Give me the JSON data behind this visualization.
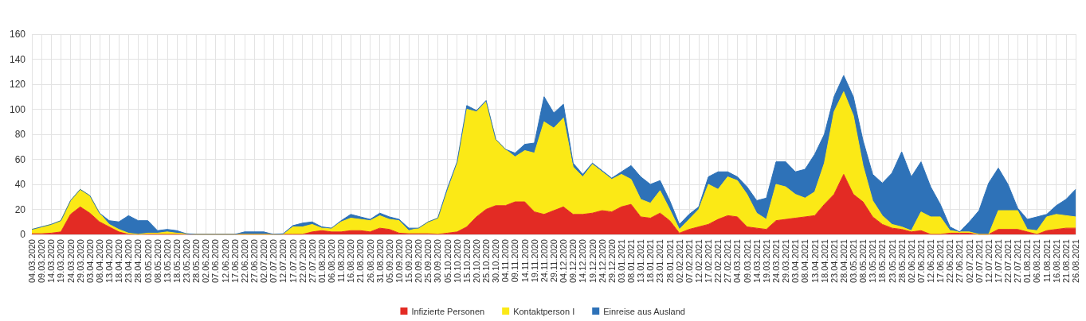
{
  "chart_data": {
    "type": "area",
    "stacked": true,
    "grid": true,
    "legend": "bottom",
    "categories": [
      "04.03.2020",
      "09.03.2020",
      "14.03.2020",
      "19.03.2020",
      "24.03.2020",
      "29.03.2020",
      "03.04.2020",
      "08.04.2020",
      "13.04.2020",
      "18.04.2020",
      "23.04.2020",
      "28.04.2020",
      "03.05.2020",
      "08.05.2020",
      "13.05.2020",
      "18.05.2020",
      "23.05.2020",
      "28.05.2020",
      "02.06.2020",
      "07.06.2020",
      "12.06.2020",
      "17.06.2020",
      "22.06.2020",
      "27.06.2020",
      "02.07.2020",
      "07.07.2020",
      "12.07.2020",
      "17.07.2020",
      "22.07.2020",
      "27.07.2020",
      "01.08.2020",
      "06.08.2020",
      "11.08.2020",
      "16.08.2020",
      "21.08.2020",
      "26.08.2020",
      "31.08.2020",
      "05.09.2020",
      "10.09.2020",
      "15.09.2020",
      "20.09.2020",
      "25.09.2020",
      "30.09.2020",
      "05.10.2020",
      "10.10.2020",
      "15.10.2020",
      "20.10.2020",
      "25.10.2020",
      "30.10.2020",
      "04.11.2020",
      "09.11.2020",
      "14.11.2020",
      "19.11.2020",
      "24.11.2020",
      "29.11.2020",
      "04.12.2020",
      "09.12.2020",
      "14.12.2020",
      "19.12.2020",
      "24.12.2020",
      "29.12.2020",
      "03.01.2021",
      "08.01.2021",
      "13.01.2021",
      "18.01.2021",
      "23.01.2021",
      "28.01.2021",
      "02.02.2021",
      "07.02.2021",
      "12.02.2021",
      "17.02.2021",
      "22.02.2021",
      "27.02.2021",
      "04.03.2021",
      "09.03.2021",
      "14.03.2021",
      "19.03.2021",
      "24.03.2021",
      "29.03.2021",
      "03.04.2021",
      "08.04.2021",
      "13.04.2021",
      "18.04.2021",
      "23.04.2021",
      "28.04.2021",
      "03.05.2021",
      "08.05.2021",
      "13.05.2021",
      "18.05.2021",
      "23.05.2021",
      "28.05.2021",
      "02.06.2021",
      "07.06.2021",
      "12.06.2021",
      "17.06.2021",
      "22.06.2021",
      "27.06.2021",
      "02.07.2021",
      "07.07.2021",
      "12.07.2021",
      "17.07.2021",
      "22.07.2021",
      "27.07.2021",
      "01.08.2021",
      "06.08.2021",
      "11.08.2021",
      "16.08.2021",
      "21.08.2021",
      "26.08.2021"
    ],
    "ylim": [
      0,
      160
    ],
    "yticks": [
      0,
      20,
      40,
      60,
      80,
      100,
      120,
      140,
      160
    ],
    "series": [
      {
        "name": "Infizierte Personen",
        "color": "#e32b24",
        "values": [
          0.5,
          0.5,
          1,
          2,
          16,
          22,
          17,
          10,
          6,
          2,
          0,
          0,
          0,
          0,
          0,
          0,
          0,
          0,
          0,
          0,
          0,
          0,
          0,
          0,
          0,
          0,
          0,
          0,
          0,
          2,
          3,
          2,
          2,
          3,
          3,
          2,
          5,
          4,
          1,
          0.5,
          0.5,
          0.5,
          0,
          1,
          2,
          6,
          14,
          20,
          23,
          23,
          26,
          26,
          18,
          16,
          19,
          22,
          16,
          16,
          17,
          19,
          18,
          22,
          24,
          14,
          13,
          17,
          11,
          1,
          4,
          6,
          8,
          12,
          15,
          14,
          6,
          5,
          4,
          11,
          12,
          13,
          14,
          15,
          24,
          32,
          48,
          32,
          26,
          14,
          8,
          5,
          4,
          2,
          3,
          0,
          0,
          1,
          1,
          1,
          0,
          0,
          4,
          4,
          4,
          2,
          0,
          3,
          4,
          5,
          5
        ]
      },
      {
        "name": "Kontaktperson I",
        "color": "#fbe916",
        "values": [
          3.5,
          5.5,
          7,
          9,
          11,
          14,
          14,
          7,
          2,
          2,
          1,
          0,
          1,
          1,
          2,
          1,
          0.5,
          0,
          0,
          0,
          0,
          0,
          0,
          0,
          0,
          0,
          0,
          6,
          6,
          6,
          2,
          3,
          8,
          10,
          9,
          9,
          10,
          8,
          10,
          2.5,
          4.5,
          9.5,
          13,
          34,
          55,
          94,
          84,
          86,
          53,
          45,
          36,
          41,
          47,
          74,
          66,
          71,
          38,
          30,
          39,
          31,
          26,
          26,
          20,
          14,
          12,
          18,
          9,
          3,
          8,
          14,
          32,
          24,
          31,
          29,
          26,
          12,
          8,
          29,
          26,
          19,
          15,
          19,
          33,
          66,
          66,
          63,
          29,
          13,
          7,
          3,
          2,
          1,
          15,
          14,
          14,
          2,
          1,
          1,
          0,
          0,
          15,
          15,
          15,
          2,
          3,
          11,
          12,
          10,
          9
        ]
      },
      {
        "name": "Einreise aus Ausland",
        "color": "#2e72b8",
        "values": [
          0,
          0,
          0,
          0,
          0,
          0,
          0,
          0,
          3,
          6,
          14,
          11,
          10,
          2,
          2,
          2,
          0,
          0,
          0,
          0,
          0,
          0,
          2,
          2,
          2,
          0,
          0.5,
          1,
          3,
          2,
          1,
          0,
          1,
          3,
          2,
          1,
          2,
          2,
          1,
          2,
          0,
          0,
          0,
          2,
          1,
          3,
          1,
          1,
          0,
          0,
          3,
          5,
          8,
          20,
          12,
          11,
          3,
          2,
          1,
          1,
          1,
          2,
          11,
          18,
          15,
          8,
          7,
          4,
          4,
          2,
          6,
          14,
          4,
          3,
          6,
          10,
          17,
          18,
          20,
          18,
          23,
          30,
          23,
          12,
          13,
          15,
          20,
          21,
          26,
          41,
          60,
          43,
          40,
          24,
          10,
          3,
          0,
          8,
          19,
          41,
          34,
          21,
          2,
          8,
          11,
          2,
          7,
          13,
          22
        ]
      }
    ]
  }
}
